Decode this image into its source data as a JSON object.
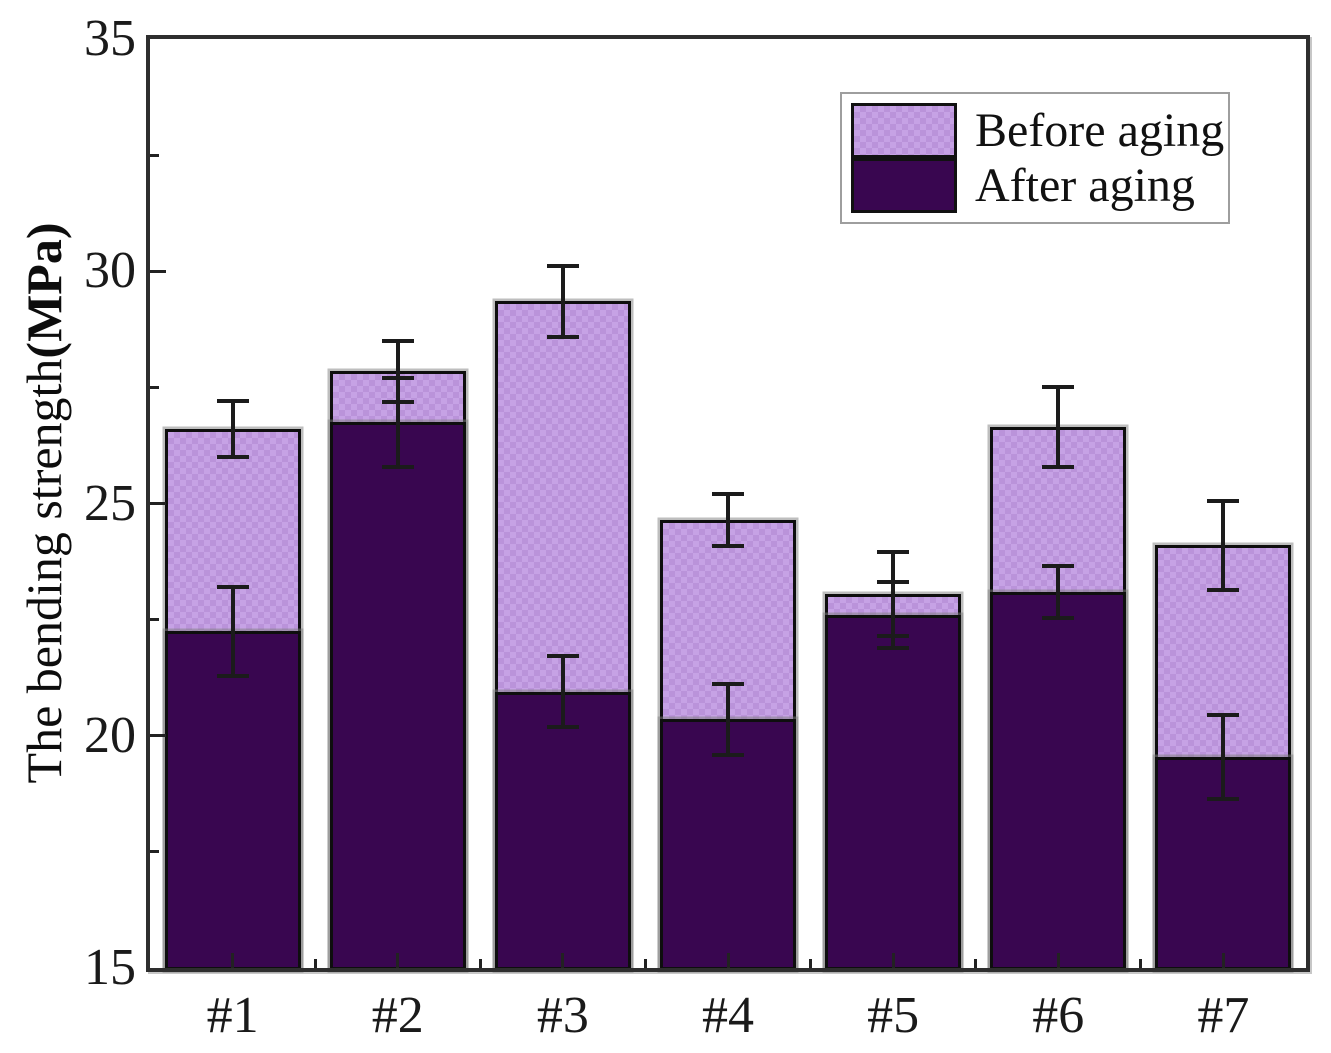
{
  "chart_data": {
    "type": "bar",
    "bar_style": "overlapped-stacked-look",
    "title": "",
    "xlabel": "",
    "ylabel": "The bending strength(MPa)",
    "ylabel_main": "The bending strength",
    "ylabel_unit": "(MPa)",
    "categories": [
      "#1",
      "#2",
      "#3",
      "#4",
      "#5",
      "#6",
      "#7"
    ],
    "series": [
      {
        "name": "Before aging",
        "color": "#c6a2e5",
        "pattern": "crosshatch",
        "values": [
          26.6,
          27.85,
          29.35,
          24.65,
          23.05,
          26.65,
          24.1
        ],
        "errors": [
          0.65,
          0.7,
          0.8,
          0.6,
          0.95,
          0.9,
          1.0
        ]
      },
      {
        "name": "After aging",
        "color": "#390650",
        "pattern": "solid",
        "values": [
          22.25,
          26.75,
          20.95,
          20.35,
          22.6,
          23.1,
          19.55
        ],
        "errors": [
          1.0,
          1.0,
          0.8,
          0.8,
          0.75,
          0.6,
          0.95
        ]
      }
    ],
    "ylim": [
      15,
      35
    ],
    "yticks": [
      15,
      20,
      25,
      30,
      35
    ],
    "ytick_labels": [
      "15",
      "20",
      "25",
      "30",
      "35"
    ],
    "y_minor_step": 2.5,
    "grid": false,
    "legend_position": "top-right",
    "error_bar_color": "#1b1b1b",
    "axis_frame_color": "#2e2e2e",
    "bar_border_color": "#0e0e0e"
  }
}
